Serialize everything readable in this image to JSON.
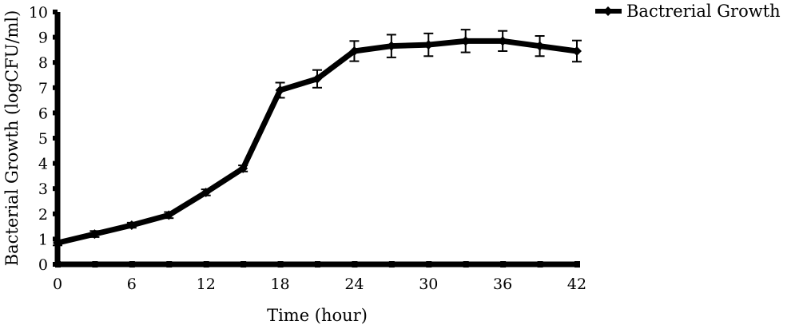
{
  "chart_data": {
    "type": "line",
    "title": "",
    "xlabel": "Time (hour)",
    "ylabel": "Bacterial Growth (logCFU/ml)",
    "xlim": [
      0,
      42
    ],
    "ylim": [
      0,
      10
    ],
    "x_ticks": [
      0,
      6,
      12,
      18,
      24,
      30,
      36,
      42
    ],
    "y_ticks": [
      0,
      1,
      2,
      3,
      4,
      5,
      6,
      7,
      8,
      9,
      10
    ],
    "grid": false,
    "legend_position": "top-right",
    "series": [
      {
        "name": "Bactrerial Growth",
        "color": "#000000",
        "marker": "diamond",
        "x": [
          0,
          3,
          6,
          9,
          12,
          15,
          18,
          21,
          24,
          27,
          30,
          33,
          36,
          39,
          42
        ],
        "y": [
          0.85,
          1.2,
          1.55,
          1.95,
          2.85,
          3.8,
          6.9,
          7.35,
          8.45,
          8.65,
          8.7,
          8.85,
          8.85,
          8.65,
          8.45
        ],
        "error": [
          0.1,
          0.12,
          0.1,
          0.12,
          0.12,
          0.12,
          0.3,
          0.35,
          0.4,
          0.45,
          0.45,
          0.45,
          0.4,
          0.4,
          0.42
        ]
      }
    ]
  }
}
